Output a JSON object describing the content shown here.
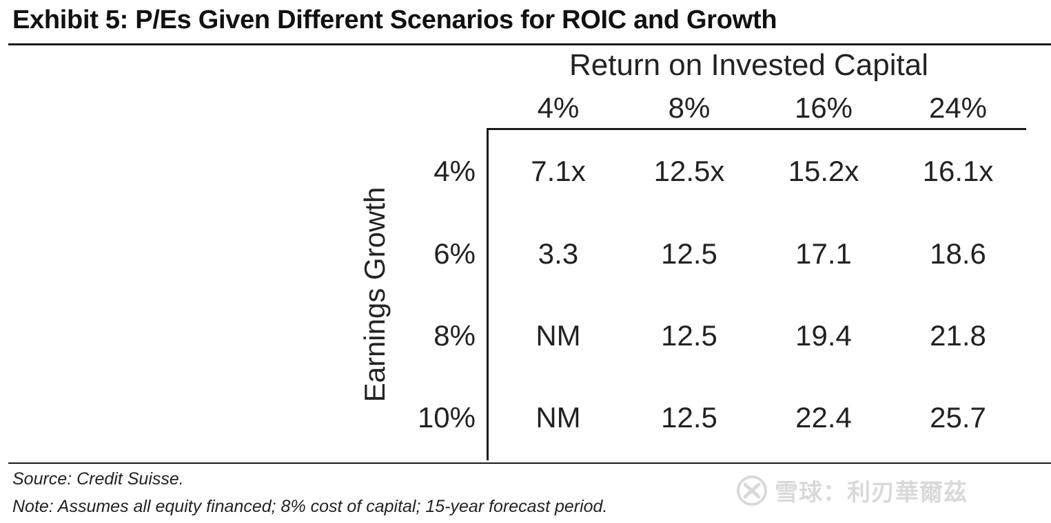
{
  "exhibit": {
    "title": "Exhibit 5: P/Es Given Different Scenarios for ROIC and Growth",
    "source": "Source: Credit Suisse.",
    "note": "Note: Assumes all equity financed; 8% cost of capital; 15-year forecast period.",
    "watermark": "雪球：利刃華爾茲",
    "watermark_icon": "xueqiu-logo-icon"
  },
  "chart_data": {
    "type": "table",
    "title": "Exhibit 5: P/Es Given Different Scenarios for ROIC and Growth",
    "column_axis_label": "Return on Invested Capital",
    "row_axis_label": "Earnings Growth",
    "columns": [
      "4%",
      "8%",
      "16%",
      "24%"
    ],
    "rows": [
      "4%",
      "6%",
      "8%",
      "10%"
    ],
    "cells": [
      [
        "7.1x",
        "12.5x",
        "15.2x",
        "16.1x"
      ],
      [
        "3.3",
        "12.5",
        "17.1",
        "18.6"
      ],
      [
        "NM",
        "12.5",
        "19.4",
        "21.8"
      ],
      [
        "NM",
        "12.5",
        "22.4",
        "25.7"
      ]
    ]
  }
}
